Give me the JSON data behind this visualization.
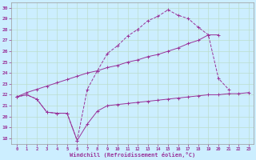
{
  "xlabel": "Windchill (Refroidissement éolien,°C)",
  "bg_color": "#cceeff",
  "grid_color": "#bbddcc",
  "line_color": "#993399",
  "xlim": [
    -0.5,
    23.5
  ],
  "ylim": [
    17.5,
    30.5
  ],
  "xticks": [
    0,
    1,
    2,
    3,
    4,
    5,
    6,
    7,
    8,
    9,
    10,
    11,
    12,
    13,
    14,
    15,
    16,
    17,
    18,
    19,
    20,
    21,
    22,
    23
  ],
  "yticks": [
    18,
    19,
    20,
    21,
    22,
    23,
    24,
    25,
    26,
    27,
    28,
    29,
    30
  ],
  "curve1_x": [
    0,
    1,
    2,
    3,
    4,
    5,
    6,
    7,
    8,
    9,
    10,
    11,
    12,
    13,
    14,
    15,
    16,
    17,
    18,
    19,
    20,
    21,
    22,
    23
  ],
  "curve1_y": [
    21.8,
    22.0,
    21.6,
    20.4,
    20.3,
    20.3,
    17.8,
    19.3,
    20.5,
    21.0,
    21.1,
    21.2,
    21.3,
    21.4,
    21.5,
    21.6,
    21.7,
    21.8,
    21.9,
    22.0,
    22.0,
    22.1,
    22.1,
    22.2
  ],
  "curve2_x": [
    0,
    1,
    2,
    3,
    4,
    5,
    6,
    7,
    8,
    9,
    10,
    11,
    12,
    13,
    14,
    15,
    16,
    17,
    18,
    19,
    20,
    21,
    22,
    23
  ],
  "curve2_y": [
    21.8,
    22.0,
    21.6,
    20.4,
    20.3,
    20.3,
    17.8,
    22.5,
    24.2,
    25.8,
    26.5,
    27.4,
    28.0,
    28.8,
    29.2,
    29.8,
    29.3,
    29.0,
    28.2,
    27.5,
    23.5,
    22.5,
    null,
    null
  ],
  "curve3_x": [
    0,
    1,
    2,
    3,
    4,
    5,
    6,
    7,
    8,
    9,
    10,
    11,
    12,
    13,
    14,
    15,
    16,
    17,
    18,
    19,
    20,
    21,
    22,
    23
  ],
  "curve3_y": [
    21.8,
    22.2,
    22.5,
    22.8,
    23.1,
    23.4,
    23.7,
    24.0,
    24.2,
    24.5,
    24.7,
    25.0,
    25.2,
    25.5,
    25.7,
    26.0,
    26.3,
    26.7,
    27.0,
    27.5,
    27.5,
    null,
    null,
    null
  ]
}
